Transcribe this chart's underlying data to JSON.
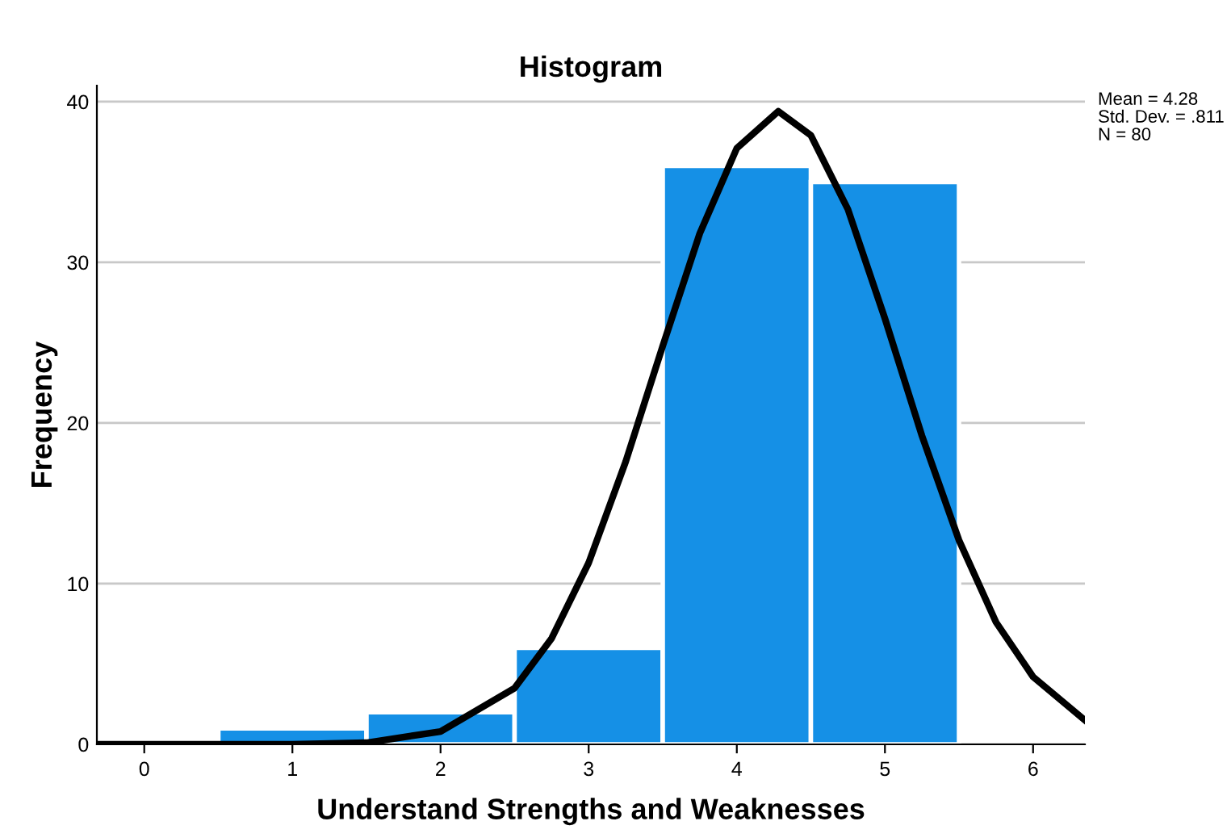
{
  "chart_data": {
    "type": "histogram",
    "title": "Histogram",
    "xlabel": "Understand Strengths and Weaknesses",
    "ylabel": "Frequency",
    "bins": [
      0.5,
      1.5,
      2.5,
      3.5,
      4.5,
      5.5
    ],
    "values": [
      1,
      2,
      6,
      36,
      35
    ],
    "color": "#1590e6",
    "series": [
      {
        "type": "line",
        "color": "#000000",
        "x": [
          -0.32,
          0,
          1,
          1.5,
          2,
          2.5,
          2.75,
          3,
          3.25,
          3.5,
          3.75,
          4,
          4.28,
          4.5,
          4.75,
          5,
          5.25,
          5.5,
          5.75,
          6,
          6.35
        ],
        "values": [
          0,
          0,
          0.0,
          0.1,
          0.8,
          3.5,
          6.6,
          11.3,
          17.6,
          24.8,
          31.8,
          37.1,
          39.4,
          37.9,
          33.3,
          26.5,
          19.2,
          12.7,
          7.6,
          4.2,
          1.5
        ]
      }
    ],
    "xlim": [
      -0.32,
      6.35
    ],
    "xticks": [
      0,
      1,
      2,
      3,
      4,
      5,
      6
    ],
    "ylim": [
      0,
      41
    ],
    "yticks": [
      0,
      10,
      20,
      30,
      40
    ],
    "grid": "y",
    "legend": false,
    "annotations": [
      "Mean = 4.28",
      "Std. Dev. = .811",
      "N = 80"
    ]
  }
}
